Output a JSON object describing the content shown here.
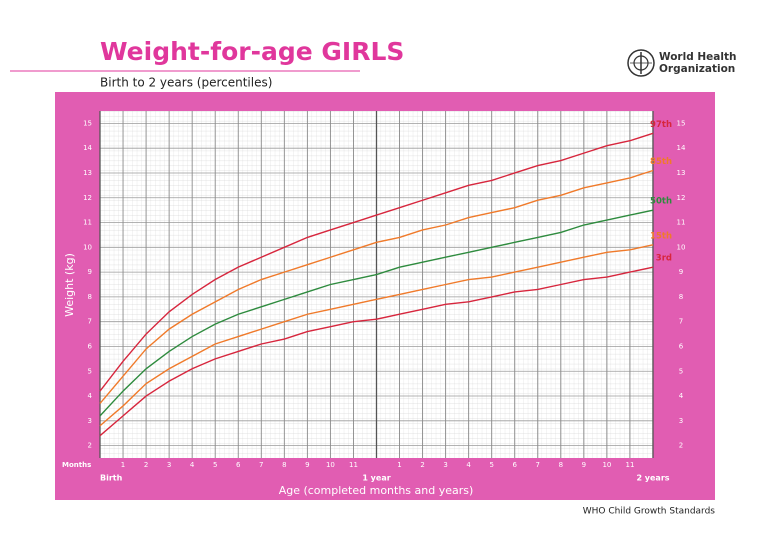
{
  "header": {
    "title": "Weight-for-age GIRLS",
    "subtitle": "Birth to 2 years (percentiles)",
    "organization": [
      "World Health",
      "Organization"
    ]
  },
  "footer": "WHO Child Growth Standards",
  "chart_data": {
    "type": "line",
    "x_label": "Age (completed months and years)",
    "y_label": "Weight (kg)",
    "x_unit_label": "Months",
    "x": [
      0,
      1,
      2,
      3,
      4,
      5,
      6,
      7,
      8,
      9,
      10,
      11,
      12,
      13,
      14,
      15,
      16,
      17,
      18,
      19,
      20,
      21,
      22,
      23,
      24
    ],
    "xlim": [
      0,
      24
    ],
    "xticks": [
      {
        "value": 0,
        "label": "Birth"
      },
      1,
      2,
      3,
      4,
      5,
      6,
      7,
      8,
      9,
      10,
      11,
      {
        "value": 12,
        "label": "1 year"
      },
      {
        "value": 13,
        "label": "1"
      },
      {
        "value": 14,
        "label": "2"
      },
      {
        "value": 15,
        "label": "3"
      },
      {
        "value": 16,
        "label": "4"
      },
      {
        "value": 17,
        "label": "5"
      },
      {
        "value": 18,
        "label": "6"
      },
      {
        "value": 19,
        "label": "7"
      },
      {
        "value": 20,
        "label": "8"
      },
      {
        "value": 21,
        "label": "9"
      },
      {
        "value": 22,
        "label": "10"
      },
      {
        "value": 23,
        "label": "11"
      },
      {
        "value": 24,
        "label": "2 years"
      }
    ],
    "ylim": [
      1.5,
      15.5
    ],
    "yticks": [
      2,
      3,
      4,
      5,
      6,
      7,
      8,
      9,
      10,
      11,
      12,
      13,
      14,
      15
    ],
    "grid": true,
    "series": [
      {
        "name": "97th",
        "color": "#d7263d",
        "values": [
          4.2,
          5.4,
          6.5,
          7.4,
          8.1,
          8.7,
          9.2,
          9.6,
          10.0,
          10.4,
          10.7,
          11.0,
          11.3,
          11.6,
          11.9,
          12.2,
          12.5,
          12.7,
          13.0,
          13.3,
          13.5,
          13.8,
          14.1,
          14.3,
          14.6
        ]
      },
      {
        "name": "85th",
        "color": "#f07a2a",
        "values": [
          3.7,
          4.8,
          5.9,
          6.7,
          7.3,
          7.8,
          8.3,
          8.7,
          9.0,
          9.3,
          9.6,
          9.9,
          10.2,
          10.4,
          10.7,
          10.9,
          11.2,
          11.4,
          11.6,
          11.9,
          12.1,
          12.4,
          12.6,
          12.8,
          13.1
        ]
      },
      {
        "name": "50th",
        "color": "#2e8b3e",
        "values": [
          3.2,
          4.2,
          5.1,
          5.8,
          6.4,
          6.9,
          7.3,
          7.6,
          7.9,
          8.2,
          8.5,
          8.7,
          8.9,
          9.2,
          9.4,
          9.6,
          9.8,
          10.0,
          10.2,
          10.4,
          10.6,
          10.9,
          11.1,
          11.3,
          11.5
        ]
      },
      {
        "name": "15th",
        "color": "#f07a2a",
        "values": [
          2.8,
          3.6,
          4.5,
          5.1,
          5.6,
          6.1,
          6.4,
          6.7,
          7.0,
          7.3,
          7.5,
          7.7,
          7.9,
          8.1,
          8.3,
          8.5,
          8.7,
          8.8,
          9.0,
          9.2,
          9.4,
          9.6,
          9.8,
          9.9,
          10.1
        ]
      },
      {
        "name": "3rd",
        "color": "#d7263d",
        "values": [
          2.4,
          3.2,
          4.0,
          4.6,
          5.1,
          5.5,
          5.8,
          6.1,
          6.3,
          6.6,
          6.8,
          7.0,
          7.1,
          7.3,
          7.5,
          7.7,
          7.8,
          8.0,
          8.2,
          8.3,
          8.5,
          8.7,
          8.8,
          9.0,
          9.2
        ]
      }
    ]
  }
}
